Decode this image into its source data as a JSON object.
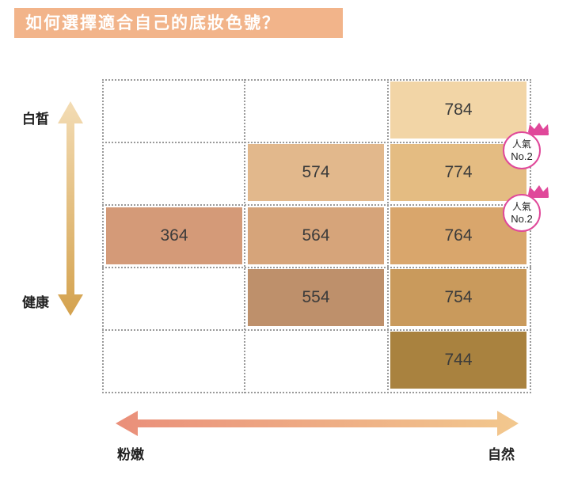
{
  "title": "如何選擇適合自己的底妝色號？",
  "y_axis": {
    "top_label": "白皙",
    "bottom_label": "健康"
  },
  "x_axis": {
    "left_label": "粉嫩",
    "right_label": "自然"
  },
  "shades": [
    {
      "code": "784",
      "color": "#f2d5a6"
    },
    {
      "code": "574",
      "color": "#e2b88c"
    },
    {
      "code": "774",
      "color": "#e4bc82"
    },
    {
      "code": "364",
      "color": "#d49a78"
    },
    {
      "code": "564",
      "color": "#d6a47a"
    },
    {
      "code": "764",
      "color": "#d9a66c"
    },
    {
      "code": "554",
      "color": "#be906b"
    },
    {
      "code": "754",
      "color": "#c99a5c"
    },
    {
      "code": "744",
      "color": "#a9823f"
    }
  ],
  "badges": [
    {
      "line1": "人氣",
      "line2": "No.2"
    },
    {
      "line1": "人氣",
      "line2": "No.2"
    }
  ],
  "colors": {
    "title_bg": "#f2b48a",
    "vertical_arrow_top": "#f3dcb4",
    "vertical_arrow_bottom": "#d4a24e",
    "horizontal_arrow_left": "#ea8f7a",
    "horizontal_arrow_right": "#f2c88e",
    "badge_accent": "#e0489a"
  }
}
